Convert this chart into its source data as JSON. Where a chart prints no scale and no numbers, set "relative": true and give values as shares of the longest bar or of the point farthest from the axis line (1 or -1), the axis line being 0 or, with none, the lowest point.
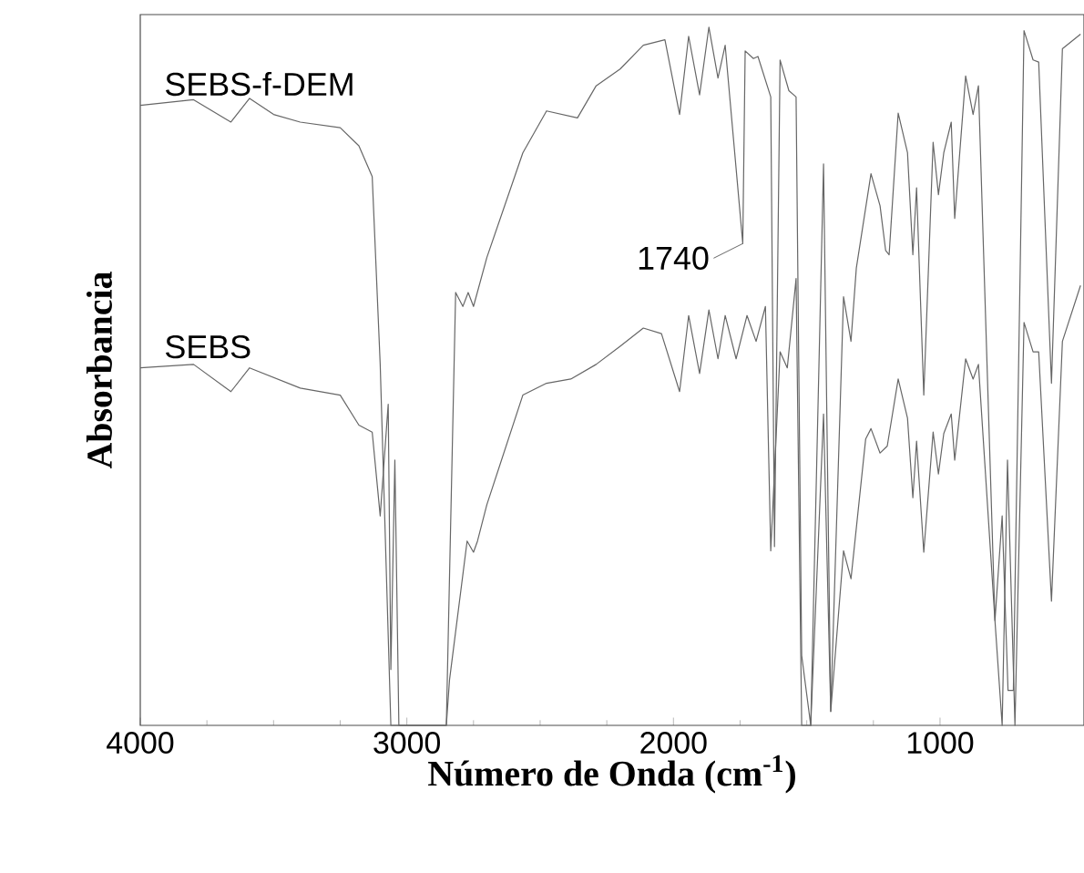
{
  "chart_data": {
    "type": "line",
    "relative": true,
    "xlabel": "Número de Onda (cm$^{-1}$)",
    "ylabel": "Absorbancia",
    "xlim": [
      4000,
      460
    ],
    "xticks": [
      4000,
      3000,
      2000,
      1000
    ],
    "tick_labels": "x",
    "annotations": [
      {
        "text": "1740",
        "x": 1740,
        "y": 0.69
      }
    ],
    "series": [
      {
        "name": "SEBS-f-DEM",
        "color": "#666666",
        "x": [
          4000,
          3800,
          3660,
          3590,
          3500,
          3400,
          3250,
          3180,
          3130,
          3100,
          3060,
          2852,
          2817,
          2790,
          2770,
          2750,
          2700,
          2565,
          2476,
          2360,
          2290,
          2200,
          2113,
          2032,
          1977,
          1943,
          1902,
          1867,
          1833,
          1806,
          1740,
          1731,
          1700,
          1683,
          1635,
          1621,
          1600,
          1567,
          1540,
          1519,
          1485,
          1437,
          1410,
          1362,
          1334,
          1314,
          1259,
          1225,
          1204,
          1191,
          1157,
          1122,
          1102,
          1088,
          1061,
          1026,
          1006,
          986,
          958,
          945,
          904,
          876,
          856,
          794,
          767,
          745,
          725,
          685,
          651,
          630,
          582,
          541,
          473
        ],
        "values": [
          0.888,
          0.896,
          0.864,
          0.898,
          0.875,
          0.864,
          0.856,
          0.83,
          0.786,
          0.517,
          0,
          0,
          0.62,
          0.6,
          0.62,
          0.6,
          0.67,
          0.82,
          0.88,
          0.87,
          0.916,
          0.94,
          0.974,
          0.982,
          0.875,
          0.987,
          0.903,
          1,
          0.927,
          0.974,
          0.69,
          0.966,
          0.955,
          0.958,
          0.9,
          0.256,
          0.953,
          0.909,
          0.9,
          0.1,
          0,
          0.804,
          0.02,
          0.614,
          0.55,
          0.655,
          0.79,
          0.744,
          0.68,
          0.674,
          0.877,
          0.82,
          0.674,
          0.77,
          0.473,
          0.835,
          0.76,
          0.82,
          0.864,
          0.726,
          0.93,
          0.875,
          0.916,
          0.15,
          0.3,
          0.05,
          0.05,
          0.995,
          0.953,
          0.95,
          0.49,
          0.969,
          0.99
        ]
      },
      {
        "name": "SEBS",
        "color": "#666666",
        "x": [
          4000,
          3800,
          3660,
          3590,
          3400,
          3250,
          3180,
          3130,
          3100,
          3070,
          3060,
          3045,
          3030,
          2852,
          2840,
          2774,
          2750,
          2735,
          2700,
          2565,
          2476,
          2385,
          2290,
          2200,
          2113,
          2045,
          1977,
          1943,
          1902,
          1867,
          1833,
          1806,
          1765,
          1724,
          1690,
          1655,
          1635,
          1600,
          1573,
          1540,
          1519,
          1485,
          1437,
          1410,
          1362,
          1334,
          1279,
          1259,
          1225,
          1198,
          1157,
          1122,
          1102,
          1088,
          1061,
          1026,
          1006,
          986,
          958,
          945,
          904,
          876,
          856,
          794,
          767,
          747,
          719,
          685,
          651,
          630,
          582,
          541,
          473
        ],
        "values": [
          0.512,
          0.517,
          0.478,
          0.512,
          0.483,
          0.473,
          0.43,
          0.42,
          0.3,
          0.46,
          0.08,
          0.38,
          0,
          0,
          0.065,
          0.264,
          0.248,
          0.264,
          0.316,
          0.473,
          0.49,
          0.496,
          0.517,
          0.543,
          0.569,
          0.561,
          0.478,
          0.587,
          0.504,
          0.595,
          0.525,
          0.587,
          0.525,
          0.587,
          0.55,
          0.6,
          0.25,
          0.535,
          0.512,
          0.64,
          0,
          0,
          0.446,
          0.02,
          0.25,
          0.21,
          0.41,
          0.425,
          0.39,
          0.4,
          0.496,
          0.44,
          0.326,
          0.407,
          0.248,
          0.42,
          0.36,
          0.418,
          0.446,
          0.38,
          0.525,
          0.496,
          0.517,
          0.15,
          0,
          0.38,
          0,
          0.577,
          0.535,
          0.535,
          0.178,
          0.55,
          0.63
        ]
      }
    ]
  }
}
